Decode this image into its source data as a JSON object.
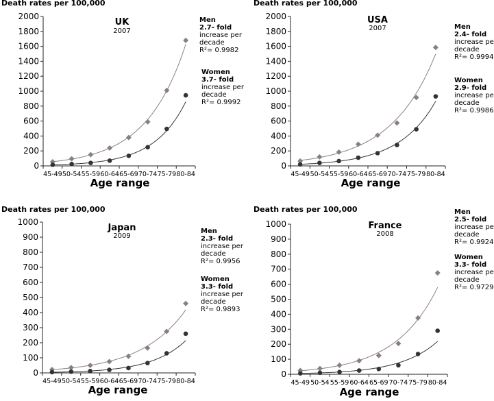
{
  "colors": {
    "men": "#8a7f7f",
    "women": "#333333",
    "axis": "#222222"
  },
  "chart_data": [
    {
      "type": "scatter",
      "title": "UK",
      "subtitle": "2007",
      "ylabel": "Death rates per 100,000",
      "xlabel": "Age range",
      "ylim": [
        0,
        2000
      ],
      "ytick_step": 200,
      "categories": [
        "45-49",
        "50-54",
        "55-59",
        "60-64",
        "65-69",
        "70-74",
        "75-79",
        "80-84"
      ],
      "series": [
        {
          "name": "Men",
          "marker": "diamond",
          "values": [
            55,
            95,
            150,
            240,
            380,
            590,
            1010,
            1680
          ],
          "trendline": "exponential"
        },
        {
          "name": "Women",
          "marker": "circle",
          "values": [
            15,
            25,
            40,
            70,
            135,
            250,
            495,
            945
          ],
          "trendline": "exponential"
        }
      ],
      "annotations": [
        {
          "series": "Men",
          "fold": "2.7- fold",
          "lines": [
            "increase per",
            "decade"
          ],
          "r2": "R²= 0.9982"
        },
        {
          "series": "Women",
          "fold": "3.7- fold",
          "lines": [
            "increase per",
            "decade"
          ],
          "r2": "R²= 0.9992"
        }
      ]
    },
    {
      "type": "scatter",
      "title": "USA",
      "subtitle": "2007",
      "ylabel": "Death rates per 100,000",
      "xlabel": "Age range",
      "ylim": [
        0,
        2000
      ],
      "ytick_step": 200,
      "categories": [
        "45-49",
        "50-54",
        "55-59",
        "60-64",
        "65-69",
        "70-74",
        "75-79",
        "80-84"
      ],
      "series": [
        {
          "name": "Men",
          "marker": "diamond",
          "values": [
            65,
            120,
            185,
            290,
            410,
            575,
            915,
            1585
          ],
          "trendline": "exponential"
        },
        {
          "name": "Women",
          "marker": "circle",
          "values": [
            20,
            40,
            65,
            110,
            170,
            280,
            490,
            930
          ],
          "trendline": "exponential"
        }
      ],
      "annotations": [
        {
          "series": "Men",
          "fold": "2.4- fold",
          "lines": [
            "increase per",
            "decade"
          ],
          "r2": "R²= 0.9994"
        },
        {
          "series": "Women",
          "fold": "2.9- fold",
          "lines": [
            "increase per",
            "decade"
          ],
          "r2": "R²= 0.9986"
        }
      ]
    },
    {
      "type": "scatter",
      "title": "Japan",
      "subtitle": "2009",
      "ylabel": "Death rates per 100,000",
      "xlabel": "Age range",
      "ylim": [
        0,
        1000
      ],
      "ytick_step": 100,
      "categories": [
        "45-49",
        "50-54",
        "55-59",
        "60-64",
        "65-69",
        "70-74",
        "75-79",
        "80-84"
      ],
      "series": [
        {
          "name": "Men",
          "marker": "diamond",
          "values": [
            22,
            35,
            50,
            75,
            110,
            165,
            275,
            460
          ],
          "trendline": "exponential"
        },
        {
          "name": "Women",
          "marker": "circle",
          "values": [
            5,
            8,
            12,
            20,
            32,
            65,
            130,
            260
          ],
          "trendline": "exponential"
        }
      ],
      "annotations": [
        {
          "series": "Men",
          "fold": "2.3- fold",
          "lines": [
            "increase per",
            "decade"
          ],
          "r2": "R²= 0.9956"
        },
        {
          "series": "Women",
          "fold": "3.3- fold",
          "lines": [
            "increase per",
            "decade"
          ],
          "r2": "R²= 0.9893"
        }
      ]
    },
    {
      "type": "scatter",
      "title": "France",
      "subtitle": "2008",
      "ylabel": "Death rates per 100,000",
      "xlabel": "Age range",
      "ylim": [
        0,
        1000
      ],
      "ytick_step": 100,
      "categories": [
        "45-49",
        "50-54",
        "55-59",
        "60-64",
        "65-69",
        "70-74",
        "75-79",
        "80-84"
      ],
      "series": [
        {
          "name": "Men",
          "marker": "diamond",
          "values": [
            25,
            38,
            60,
            90,
            125,
            205,
            375,
            675
          ],
          "trendline": "exponential"
        },
        {
          "name": "Women",
          "marker": "circle",
          "values": [
            6,
            10,
            15,
            25,
            35,
            60,
            135,
            290
          ],
          "trendline": "exponential"
        }
      ],
      "annotations": [
        {
          "series": "Men",
          "fold": "2.5- fold",
          "lines": [
            "increase per",
            "decade"
          ],
          "r2": "R²= 0.9924"
        },
        {
          "series": "Women",
          "fold": "3.3- fold",
          "lines": [
            "increase per",
            "decade"
          ],
          "r2": "R²= 0.9729"
        }
      ]
    }
  ]
}
